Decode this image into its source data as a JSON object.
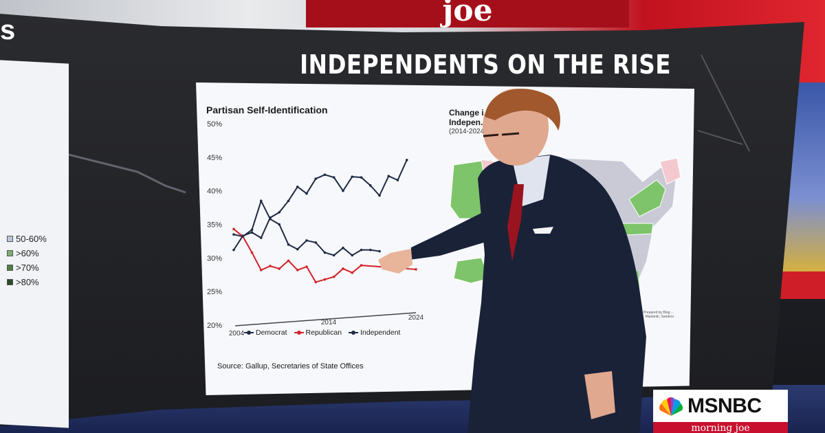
{
  "headline": "INDEPENDENTS ON THE RISE",
  "top_banner": "joe",
  "left_panel": {
    "title_fragment": "s",
    "legend": [
      {
        "label": "50-60%",
        "color": "#b9c7dc"
      },
      {
        "label": ">60%",
        "color": "#7fae72"
      },
      {
        "label": ">70%",
        "color": "#4f7e45"
      },
      {
        "label": ">80%",
        "color": "#2b4a27"
      }
    ]
  },
  "map": {
    "title": "Change i... ed Indepen... s",
    "subtitle": "(2014-2024",
    "credit": "Prepared by Blog ... Mastanik, Sanders",
    "colors": {
      "increase": "#7ec46a",
      "decrease": "#f3c9cf",
      "neutral": "#c9cad6"
    }
  },
  "source": "Source: Gallup, Secretaries of State Offices",
  "logo": {
    "brand": "MSNBC",
    "show": "morning joe"
  },
  "chart_data": {
    "type": "line",
    "title": "Partisan Self-Identification",
    "x": [
      2004,
      2005,
      2006,
      2007,
      2008,
      2009,
      2010,
      2011,
      2012,
      2013,
      2014,
      2015,
      2016,
      2017,
      2018,
      2019,
      2020,
      2021,
      2022,
      2023,
      2024
    ],
    "x_ticks": [
      2004,
      2014,
      2024
    ],
    "ylim": [
      20,
      50
    ],
    "y_ticks": [
      "20%",
      "25%",
      "30%",
      "35%",
      "40%",
      "45%",
      "50%"
    ],
    "series": [
      {
        "name": "Democrat",
        "color": "#1e2a44",
        "values": [
          33.5,
          33.2,
          34.2,
          38.5,
          35.8,
          35.0,
          32.0,
          31.3,
          32.6,
          32.3,
          30.8,
          30.4,
          31.5,
          30.4,
          31.2,
          31.2,
          31.0,
          null,
          null,
          null,
          null
        ]
      },
      {
        "name": "Republican",
        "color": "#d2232a",
        "values": [
          34.3,
          33.2,
          30.8,
          28.2,
          28.8,
          28.4,
          29.6,
          28.2,
          28.7,
          26.4,
          26.8,
          27.2,
          28.4,
          27.8,
          28.9,
          null,
          null,
          null,
          null,
          null,
          28.3
        ]
      },
      {
        "name": "Independent",
        "color": "#1e2a44",
        "values": [
          31.2,
          33.3,
          33.8,
          33.0,
          36.0,
          36.8,
          38.5,
          40.6,
          39.6,
          41.8,
          42.4,
          42.0,
          40.0,
          42.1,
          42.0,
          40.8,
          39.3,
          42.2,
          41.6,
          44.6,
          null
        ]
      }
    ]
  }
}
